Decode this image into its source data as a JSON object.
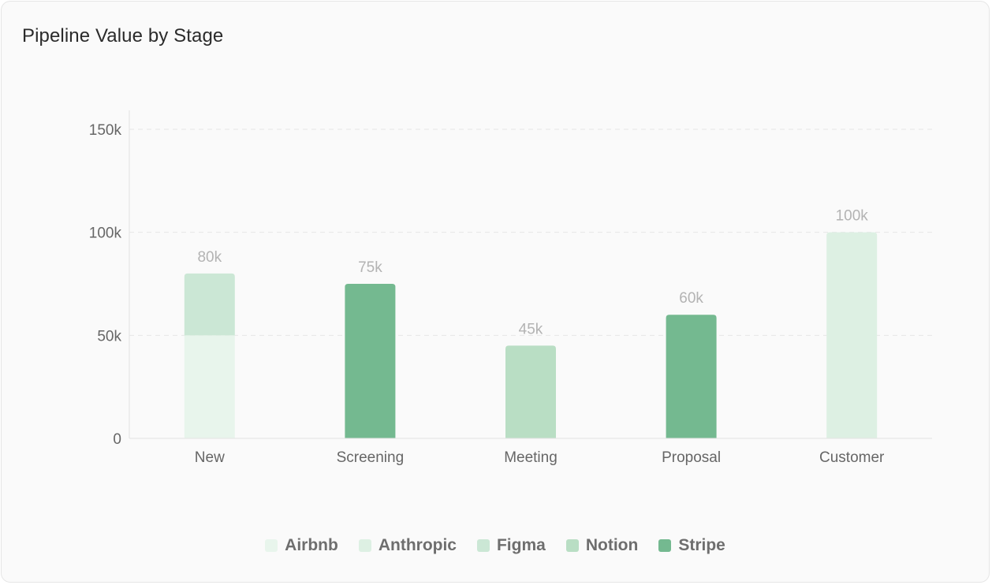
{
  "chart_data": {
    "type": "bar",
    "stacked": true,
    "title": "Pipeline Value by Stage",
    "categories": [
      "New",
      "Screening",
      "Meeting",
      "Proposal",
      "Customer"
    ],
    "series": [
      {
        "name": "Airbnb",
        "color": "#e8f5ec",
        "values": [
          50000,
          0,
          0,
          0,
          0
        ]
      },
      {
        "name": "Anthropic",
        "color": "#ddf0e3",
        "values": [
          0,
          0,
          0,
          0,
          100000
        ]
      },
      {
        "name": "Figma",
        "color": "#cbe7d5",
        "values": [
          30000,
          0,
          0,
          0,
          0
        ]
      },
      {
        "name": "Notion",
        "color": "#b9dec4",
        "values": [
          0,
          0,
          45000,
          0,
          0
        ]
      },
      {
        "name": "Stripe",
        "color": "#74b990",
        "values": [
          0,
          75000,
          0,
          60000,
          0
        ]
      }
    ],
    "totals": [
      "80k",
      "75k",
      "45k",
      "60k",
      "100k"
    ],
    "y_ticks": [
      "0",
      "50k",
      "100k",
      "150k"
    ],
    "ylim": [
      0,
      150000
    ],
    "grid": true,
    "legend_position": "bottom"
  }
}
